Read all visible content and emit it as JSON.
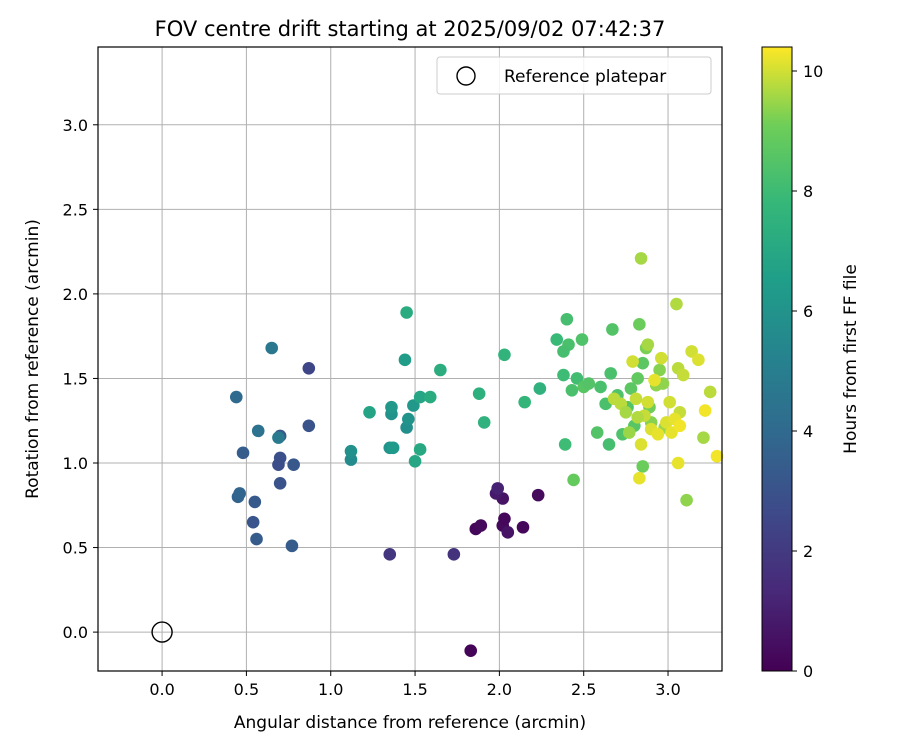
{
  "chart_data": {
    "type": "scatter",
    "title": "FOV centre drift starting at 2025/09/02 07:42:37",
    "xlabel": "Angular distance from reference (arcmin)",
    "ylabel": "Rotation from reference (arcmin)",
    "xlim": [
      -0.38,
      3.32
    ],
    "ylim": [
      -0.23,
      3.46
    ],
    "xticks": [
      "0.0",
      "0.5",
      "1.0",
      "1.5",
      "2.0",
      "2.5",
      "3.0"
    ],
    "yticks": [
      "0.0",
      "0.5",
      "1.0",
      "1.5",
      "2.0",
      "2.5",
      "3.0"
    ],
    "grid": true,
    "legend": {
      "placement": "top-right",
      "entries": [
        "Reference platepar"
      ]
    },
    "reference_point": {
      "x": 0.0,
      "y": 0.0
    },
    "colorbar": {
      "label": "Hours from first FF file",
      "colormap": "viridis",
      "range": [
        0,
        10.4
      ],
      "ticks": [
        "0",
        "2",
        "4",
        "6",
        "8",
        "10"
      ]
    },
    "points": [
      {
        "x": 1.83,
        "y": -0.11,
        "c": 0.1
      },
      {
        "x": 1.86,
        "y": 0.61,
        "c": 0.2
      },
      {
        "x": 1.89,
        "y": 0.63,
        "c": 0.3
      },
      {
        "x": 2.02,
        "y": 0.63,
        "c": 0.3
      },
      {
        "x": 2.03,
        "y": 0.67,
        "c": 0.2
      },
      {
        "x": 2.05,
        "y": 0.59,
        "c": 0.6
      },
      {
        "x": 2.14,
        "y": 0.62,
        "c": 0.2
      },
      {
        "x": 2.23,
        "y": 0.81,
        "c": 0.3
      },
      {
        "x": 2.02,
        "y": 0.79,
        "c": 0.6
      },
      {
        "x": 1.98,
        "y": 0.82,
        "c": 0.8
      },
      {
        "x": 1.99,
        "y": 0.85,
        "c": 1.1
      },
      {
        "x": 1.73,
        "y": 0.46,
        "c": 1.7
      },
      {
        "x": 1.35,
        "y": 0.46,
        "c": 1.8
      },
      {
        "x": 0.87,
        "y": 1.56,
        "c": 2.5
      },
      {
        "x": 0.87,
        "y": 1.22,
        "c": 3.0
      },
      {
        "x": 0.78,
        "y": 0.99,
        "c": 3.2
      },
      {
        "x": 0.77,
        "y": 0.51,
        "c": 3.4
      },
      {
        "x": 0.7,
        "y": 1.03,
        "c": 2.9
      },
      {
        "x": 0.69,
        "y": 0.99,
        "c": 2.8
      },
      {
        "x": 0.7,
        "y": 0.88,
        "c": 3.0
      },
      {
        "x": 0.7,
        "y": 1.16,
        "c": 3.2
      },
      {
        "x": 0.55,
        "y": 0.77,
        "c": 3.3
      },
      {
        "x": 0.56,
        "y": 0.55,
        "c": 3.4
      },
      {
        "x": 0.54,
        "y": 0.65,
        "c": 3.1
      },
      {
        "x": 0.48,
        "y": 1.06,
        "c": 3.5
      },
      {
        "x": 0.45,
        "y": 0.8,
        "c": 3.7
      },
      {
        "x": 0.46,
        "y": 0.82,
        "c": 3.8
      },
      {
        "x": 0.44,
        "y": 1.39,
        "c": 4.0
      },
      {
        "x": 0.57,
        "y": 1.19,
        "c": 4.4
      },
      {
        "x": 0.65,
        "y": 1.68,
        "c": 4.7
      },
      {
        "x": 0.69,
        "y": 1.15,
        "c": 4.8
      },
      {
        "x": 1.12,
        "y": 1.02,
        "c": 5.6
      },
      {
        "x": 1.12,
        "y": 1.07,
        "c": 5.9
      },
      {
        "x": 1.35,
        "y": 1.09,
        "c": 6.1
      },
      {
        "x": 1.37,
        "y": 1.09,
        "c": 6.3
      },
      {
        "x": 1.36,
        "y": 1.29,
        "c": 6.0
      },
      {
        "x": 1.36,
        "y": 1.33,
        "c": 6.2
      },
      {
        "x": 1.45,
        "y": 1.21,
        "c": 5.8
      },
      {
        "x": 1.46,
        "y": 1.26,
        "c": 6.0
      },
      {
        "x": 1.49,
        "y": 1.34,
        "c": 6.2
      },
      {
        "x": 1.44,
        "y": 1.61,
        "c": 6.4
      },
      {
        "x": 1.23,
        "y": 1.3,
        "c": 6.8
      },
      {
        "x": 1.5,
        "y": 1.01,
        "c": 6.9
      },
      {
        "x": 1.53,
        "y": 1.08,
        "c": 7.0
      },
      {
        "x": 1.53,
        "y": 1.39,
        "c": 6.9
      },
      {
        "x": 1.45,
        "y": 1.89,
        "c": 7.2
      },
      {
        "x": 1.59,
        "y": 1.39,
        "c": 7.2
      },
      {
        "x": 1.65,
        "y": 1.55,
        "c": 7.3
      },
      {
        "x": 1.88,
        "y": 1.41,
        "c": 7.4
      },
      {
        "x": 1.91,
        "y": 1.24,
        "c": 7.5
      },
      {
        "x": 2.03,
        "y": 1.64,
        "c": 7.6
      },
      {
        "x": 2.15,
        "y": 1.36,
        "c": 7.7
      },
      {
        "x": 2.24,
        "y": 1.44,
        "c": 7.5
      },
      {
        "x": 2.34,
        "y": 1.73,
        "c": 7.9
      },
      {
        "x": 2.38,
        "y": 1.52,
        "c": 8.0
      },
      {
        "x": 2.4,
        "y": 1.85,
        "c": 8.2
      },
      {
        "x": 2.41,
        "y": 1.7,
        "c": 8.3
      },
      {
        "x": 2.38,
        "y": 1.66,
        "c": 8.2
      },
      {
        "x": 2.39,
        "y": 1.11,
        "c": 8.0
      },
      {
        "x": 2.43,
        "y": 1.43,
        "c": 8.3
      },
      {
        "x": 2.46,
        "y": 1.5,
        "c": 8.1
      },
      {
        "x": 2.49,
        "y": 1.73,
        "c": 8.4
      },
      {
        "x": 2.44,
        "y": 0.9,
        "c": 8.9
      },
      {
        "x": 2.5,
        "y": 1.45,
        "c": 8.6
      },
      {
        "x": 2.53,
        "y": 1.47,
        "c": 8.5
      },
      {
        "x": 2.58,
        "y": 1.18,
        "c": 8.5
      },
      {
        "x": 2.6,
        "y": 1.45,
        "c": 8.3
      },
      {
        "x": 2.63,
        "y": 1.35,
        "c": 8.3
      },
      {
        "x": 2.65,
        "y": 1.11,
        "c": 8.2
      },
      {
        "x": 2.66,
        "y": 1.53,
        "c": 8.3
      },
      {
        "x": 2.67,
        "y": 1.79,
        "c": 8.5
      },
      {
        "x": 2.7,
        "y": 1.4,
        "c": 8.4
      },
      {
        "x": 2.73,
        "y": 1.17,
        "c": 8.4
      },
      {
        "x": 2.76,
        "y": 1.33,
        "c": 8.5
      },
      {
        "x": 2.78,
        "y": 1.44,
        "c": 8.7
      },
      {
        "x": 2.8,
        "y": 1.22,
        "c": 8.6
      },
      {
        "x": 2.82,
        "y": 1.5,
        "c": 8.8
      },
      {
        "x": 2.83,
        "y": 1.82,
        "c": 9.0
      },
      {
        "x": 2.85,
        "y": 1.59,
        "c": 8.7
      },
      {
        "x": 2.85,
        "y": 0.98,
        "c": 9.0
      },
      {
        "x": 2.87,
        "y": 1.68,
        "c": 9.2
      },
      {
        "x": 2.89,
        "y": 1.33,
        "c": 9.1
      },
      {
        "x": 2.9,
        "y": 1.24,
        "c": 9.3
      },
      {
        "x": 2.93,
        "y": 1.46,
        "c": 9.4
      },
      {
        "x": 2.95,
        "y": 1.55,
        "c": 9.3
      },
      {
        "x": 2.97,
        "y": 1.47,
        "c": 9.4
      },
      {
        "x": 2.98,
        "y": 1.21,
        "c": 9.5
      },
      {
        "x": 2.84,
        "y": 2.21,
        "c": 9.6
      },
      {
        "x": 3.05,
        "y": 1.94,
        "c": 9.7
      },
      {
        "x": 3.06,
        "y": 1.56,
        "c": 9.8
      },
      {
        "x": 3.07,
        "y": 1.3,
        "c": 9.9
      },
      {
        "x": 3.09,
        "y": 1.52,
        "c": 9.9
      },
      {
        "x": 3.11,
        "y": 0.78,
        "c": 9.4
      },
      {
        "x": 3.14,
        "y": 1.66,
        "c": 10.0
      },
      {
        "x": 3.18,
        "y": 1.61,
        "c": 10.1
      },
      {
        "x": 3.21,
        "y": 1.15,
        "c": 9.6
      },
      {
        "x": 3.25,
        "y": 1.42,
        "c": 9.8
      },
      {
        "x": 3.22,
        "y": 1.31,
        "c": 10.3
      },
      {
        "x": 3.29,
        "y": 1.04,
        "c": 10.3
      },
      {
        "x": 3.06,
        "y": 1.0,
        "c": 10.2
      },
      {
        "x": 2.83,
        "y": 0.91,
        "c": 10.2
      },
      {
        "x": 2.84,
        "y": 1.11,
        "c": 10.1
      },
      {
        "x": 2.79,
        "y": 1.6,
        "c": 10.0
      },
      {
        "x": 2.81,
        "y": 1.38,
        "c": 9.9
      },
      {
        "x": 2.86,
        "y": 1.28,
        "c": 9.9
      },
      {
        "x": 2.88,
        "y": 1.36,
        "c": 10.0
      },
      {
        "x": 2.9,
        "y": 1.2,
        "c": 10.1
      },
      {
        "x": 2.92,
        "y": 1.49,
        "c": 10.2
      },
      {
        "x": 2.94,
        "y": 1.17,
        "c": 10.2
      },
      {
        "x": 2.96,
        "y": 1.62,
        "c": 10.0
      },
      {
        "x": 2.99,
        "y": 1.24,
        "c": 10.1
      },
      {
        "x": 3.02,
        "y": 1.18,
        "c": 10.2
      },
      {
        "x": 3.04,
        "y": 1.26,
        "c": 10.2
      },
      {
        "x": 3.07,
        "y": 1.22,
        "c": 10.3
      },
      {
        "x": 3.01,
        "y": 1.36,
        "c": 10.0
      },
      {
        "x": 2.72,
        "y": 1.35,
        "c": 9.8
      },
      {
        "x": 2.68,
        "y": 1.38,
        "c": 9.8
      },
      {
        "x": 2.75,
        "y": 1.3,
        "c": 9.6
      },
      {
        "x": 2.77,
        "y": 1.18,
        "c": 9.5
      },
      {
        "x": 2.88,
        "y": 1.7,
        "c": 9.6
      },
      {
        "x": 2.82,
        "y": 1.27,
        "c": 9.7
      }
    ]
  }
}
